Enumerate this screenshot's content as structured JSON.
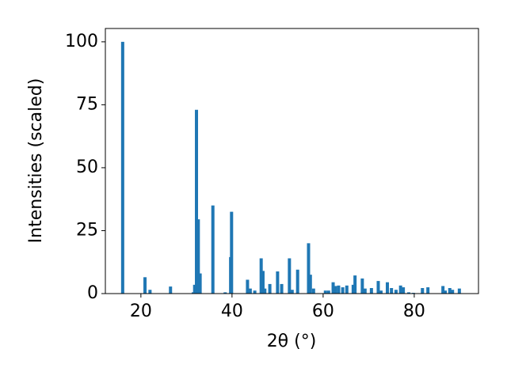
{
  "chart_data": {
    "type": "bar",
    "xlabel": "2θ (°)",
    "ylabel": "Intensities (scaled)",
    "color": "#1f77b4",
    "x": [
      16.0,
      20.9,
      22.0,
      26.5,
      31.5,
      31.8,
      32.2,
      32.6,
      33.0,
      35.8,
      38.5,
      39.7,
      39.9,
      43.4,
      44.0,
      45.0,
      46.4,
      46.8,
      47.2,
      48.3,
      50.0,
      50.9,
      52.6,
      53.2,
      54.4,
      56.8,
      57.2,
      57.9,
      60.5,
      61.2,
      62.2,
      62.7,
      63.4,
      64.3,
      65.2,
      66.6,
      67.0,
      68.6,
      69.2,
      70.6,
      72.1,
      72.7,
      74.1,
      75.0,
      76.0,
      77.0,
      77.6,
      78.8,
      79.8,
      81.8,
      83.0,
      86.3,
      86.8,
      87.8,
      88.4,
      89.9
    ],
    "values": [
      100,
      6.5,
      1.5,
      2.8,
      0.5,
      3.5,
      73,
      29.5,
      8,
      35,
      0.5,
      14.5,
      32.5,
      5.5,
      2,
      1.2,
      14,
      9,
      2,
      3.8,
      8.8,
      3.8,
      14,
      1.5,
      9.5,
      20,
      7.5,
      2,
      1.2,
      1.2,
      4.5,
      3,
      3.2,
      2.5,
      3.2,
      3.5,
      7.2,
      6,
      2,
      2.2,
      5,
      1.2,
      4.5,
      2.2,
      1.5,
      3.2,
      2.5,
      0.5,
      0.3,
      2.2,
      2.5,
      3,
      1.2,
      2.2,
      1.5,
      2
    ],
    "xlim": [
      12.2,
      94.1
    ],
    "ylim": [
      0,
      105.3
    ],
    "xticks": [
      20,
      40,
      60,
      80
    ],
    "yticks": [
      0,
      25,
      50,
      75,
      100
    ]
  }
}
